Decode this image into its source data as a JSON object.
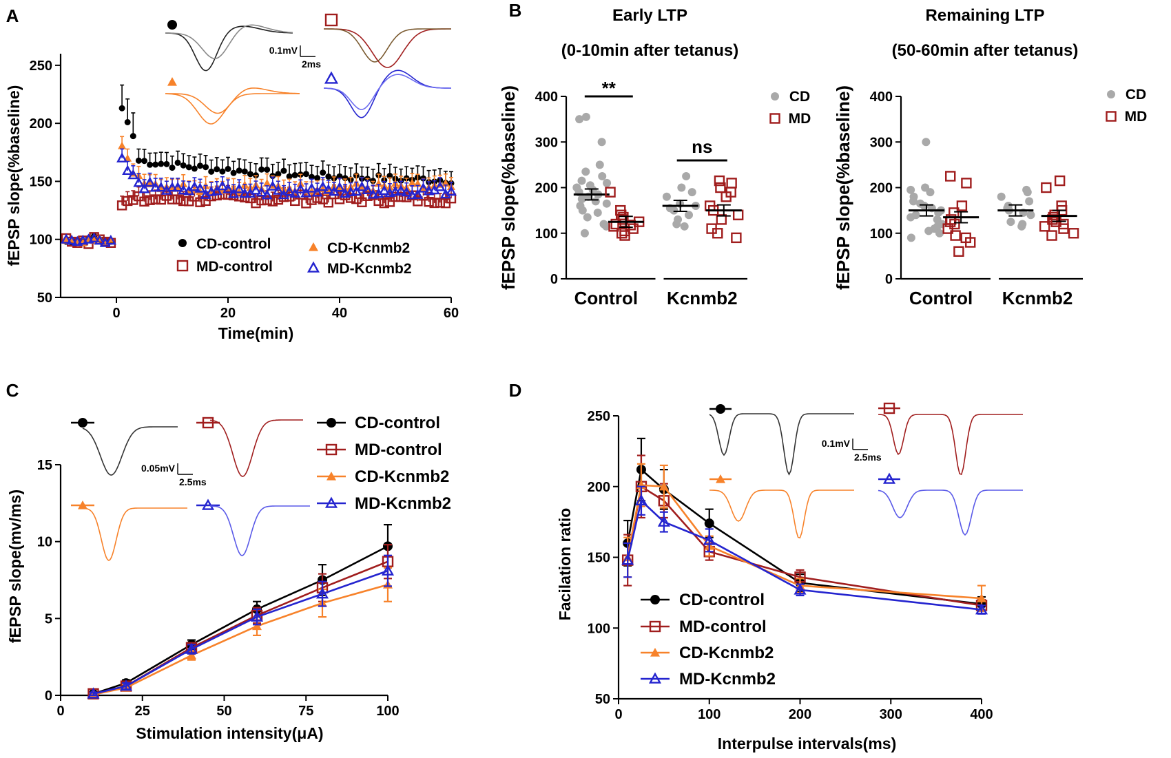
{
  "colors": {
    "cd_control": "#000000",
    "md_control": "#a01d1d",
    "cd_kcnmb2": "#f7822a",
    "md_kcnmb2": "#2424cf",
    "cd_dots": "#a9a9a9"
  },
  "chart_data": [
    {
      "id": "A",
      "panel_label": "A",
      "type": "scatter",
      "xlabel": "Time(min)",
      "ylabel": "fEPSP slope(%baseline)",
      "xlim": [
        -10,
        60
      ],
      "ylim": [
        50,
        260
      ],
      "xticks": [
        "0",
        "20",
        "40",
        "60"
      ],
      "yticks": [
        "50",
        "100",
        "150",
        "200",
        "250"
      ],
      "scale_bar": {
        "v": "0.1mV",
        "t": "2ms"
      },
      "series": [
        {
          "name": "CD-control",
          "values_pre": [
            98,
            97,
            99,
            98,
            101,
            103,
            100,
            99,
            98
          ],
          "post_start": 213,
          "post_end": 148
        },
        {
          "name": "MD-control",
          "values_pre": [
            101,
            98,
            97,
            99,
            96,
            102,
            100,
            98,
            97
          ],
          "post_start": 130,
          "post_end": 135
        },
        {
          "name": "CD-Kcnmb2",
          "values_pre": [
            99,
            100,
            98,
            97,
            100,
            99,
            101,
            98,
            100
          ],
          "post_start": 178,
          "post_end": 145
        },
        {
          "name": "MD-Kcnmb2",
          "values_pre": [
            100,
            99,
            98,
            99,
            100,
            101,
            99,
            97,
            99
          ],
          "post_start": 166,
          "post_end": 142
        }
      ],
      "legend": [
        "CD-control",
        "MD-control",
        "CD-Kcnmb2",
        "MD-Kcnmb2"
      ]
    },
    {
      "id": "B",
      "panel_label": "B",
      "type": "scatter",
      "title_left": "Early LTP",
      "subtitle_left": "(0-10min after tetanus)",
      "title_right": "Remaining LTP",
      "subtitle_right": "(50-60min after tetanus)",
      "ylabel": "fEPSP slope(%baseline)",
      "ylim": [
        0,
        400
      ],
      "yticks": [
        "0",
        "100",
        "200",
        "300",
        "400"
      ],
      "categories": [
        "Control",
        "Kcnmb2"
      ],
      "legend": [
        "CD",
        "MD"
      ],
      "significance": [
        "**",
        "ns"
      ],
      "early": {
        "control_cd": [
          355,
          350,
          300,
          250,
          235,
          225,
          215,
          210,
          205,
          200,
          195,
          190,
          185,
          180,
          175,
          170,
          165,
          160,
          150,
          145,
          135,
          120,
          115,
          100
        ],
        "control_md": [
          190,
          150,
          140,
          135,
          130,
          125,
          120,
          118,
          115,
          110,
          105,
          100,
          95
        ],
        "kcnmb2_cd": [
          225,
          200,
          190,
          180,
          165,
          160,
          155,
          150,
          140,
          130,
          120,
          115
        ],
        "kcnmb2_md": [
          215,
          210,
          200,
          190,
          180,
          160,
          150,
          140,
          130,
          110,
          100,
          90
        ],
        "means": {
          "control_cd": 185,
          "control_md": 125,
          "kcnmb2_cd": 160,
          "kcnmb2_md": 150
        }
      },
      "remaining": {
        "control_cd": [
          300,
          200,
          195,
          190,
          180,
          170,
          165,
          160,
          155,
          150,
          145,
          140,
          135,
          130,
          120,
          115,
          110,
          105,
          100,
          90
        ],
        "control_md": [
          225,
          210,
          160,
          145,
          130,
          125,
          120,
          110,
          95,
          90,
          80,
          60
        ],
        "kcnmb2_cd": [
          195,
          190,
          180,
          170,
          160,
          155,
          150,
          145,
          140,
          125,
          120,
          115
        ],
        "kcnmb2_md": [
          215,
          200,
          160,
          150,
          140,
          135,
          130,
          125,
          120,
          115,
          110,
          100,
          95
        ],
        "means": {
          "control_cd": 150,
          "control_md": 135,
          "kcnmb2_cd": 150,
          "kcnmb2_md": 138
        }
      }
    },
    {
      "id": "C",
      "panel_label": "C",
      "type": "line",
      "xlabel": "Stimulation intensity(μA)",
      "ylabel": "fEPSP slope(mv/ms)",
      "x": [
        10,
        20,
        40,
        60,
        80,
        100
      ],
      "xlim": [
        0,
        100
      ],
      "ylim": [
        0,
        15
      ],
      "xticks": [
        "0",
        "25",
        "50",
        "75",
        "100"
      ],
      "yticks": [
        "0",
        "5",
        "10",
        "15"
      ],
      "scale_bar": {
        "v": "0.05mV",
        "t": "2.5ms"
      },
      "series": [
        {
          "name": "CD-control",
          "values": [
            0.1,
            0.8,
            3.3,
            5.6,
            7.5,
            9.7
          ],
          "err": [
            0.1,
            0.2,
            0.3,
            0.5,
            1.0,
            1.4
          ]
        },
        {
          "name": "MD-control",
          "values": [
            0.1,
            0.6,
            3.1,
            5.2,
            7.0,
            8.7
          ],
          "err": [
            0.1,
            0.2,
            0.3,
            0.5,
            0.9,
            1.1
          ]
        },
        {
          "name": "CD-Kcnmb2",
          "values": [
            0.05,
            0.5,
            2.6,
            4.5,
            6.0,
            7.2
          ],
          "err": [
            0.1,
            0.2,
            0.3,
            0.6,
            0.9,
            1.1
          ]
        },
        {
          "name": "MD-Kcnmb2",
          "values": [
            0.1,
            0.6,
            3.0,
            5.1,
            6.6,
            8.1
          ],
          "err": [
            0.1,
            0.2,
            0.3,
            0.5,
            0.8,
            1.0
          ]
        }
      ],
      "legend": [
        "CD-control",
        "MD-control",
        "CD-Kcnmb2",
        "MD-Kcnmb2"
      ]
    },
    {
      "id": "D",
      "panel_label": "D",
      "type": "line",
      "xlabel": "Interpulse intervals(ms)",
      "ylabel": "Facilation ratio",
      "x": [
        10,
        25,
        50,
        100,
        200,
        400
      ],
      "xlim": [
        0,
        400
      ],
      "ylim": [
        50,
        250
      ],
      "xticks": [
        "0",
        "100",
        "200",
        "300",
        "400"
      ],
      "yticks": [
        "50",
        "100",
        "150",
        "200",
        "250"
      ],
      "scale_bar": {
        "v": "0.1mV",
        "t": "2.5ms"
      },
      "series": [
        {
          "name": "CD-control",
          "values": [
            160,
            212,
            198,
            174,
            132,
            117
          ],
          "err": [
            16,
            22,
            14,
            10,
            6,
            5
          ]
        },
        {
          "name": "MD-control",
          "values": [
            148,
            200,
            190,
            154,
            136,
            116
          ],
          "err": [
            18,
            22,
            12,
            6,
            5,
            4
          ]
        },
        {
          "name": "CD-Kcnmb2",
          "values": [
            150,
            201,
            200,
            158,
            130,
            121
          ],
          "err": [
            14,
            15,
            15,
            7,
            5,
            9
          ]
        },
        {
          "name": "MD-Kcnmb2",
          "values": [
            148,
            190,
            175,
            162,
            127,
            113
          ],
          "err": [
            12,
            10,
            7,
            8,
            4,
            3
          ]
        }
      ],
      "legend": [
        "CD-control",
        "MD-control",
        "CD-Kcnmb2",
        "MD-Kcnmb2"
      ]
    }
  ]
}
